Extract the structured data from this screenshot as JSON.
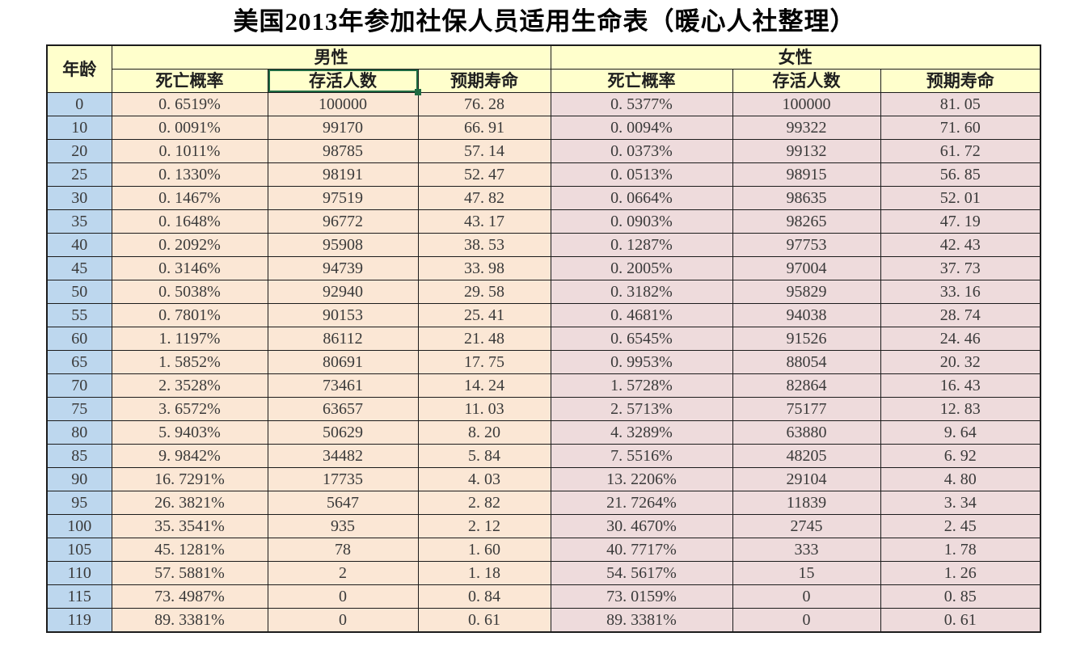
{
  "title": "美国2013年参加社保人员适用生命表（暖心人社整理）",
  "colors": {
    "header_bg": "#ffffcc",
    "age_bg": "#bdd7ee",
    "male_bg": "#fbe7d5",
    "female_bg": "#eedbdc",
    "border": "#1c1c1c",
    "selection": "#1f6b43"
  },
  "table": {
    "age_header": "年龄",
    "groups": [
      {
        "label": "男性"
      },
      {
        "label": "女性"
      }
    ],
    "sub_headers": [
      "死亡概率",
      "存活人数",
      "预期寿命"
    ],
    "columns_semantic": [
      "age",
      "male_death_probability",
      "male_survivors",
      "male_life_expectancy",
      "female_death_probability",
      "female_survivors",
      "female_life_expectancy"
    ],
    "selected_cell": "male_survivors_header",
    "rows": [
      {
        "age": "0",
        "male": [
          "0.6519%",
          "100000",
          "76.28"
        ],
        "female": [
          "0.5377%",
          "100000",
          "81.05"
        ]
      },
      {
        "age": "10",
        "male": [
          "0.0091%",
          "99170",
          "66.91"
        ],
        "female": [
          "0.0094%",
          "99322",
          "71.60"
        ]
      },
      {
        "age": "20",
        "male": [
          "0.1011%",
          "98785",
          "57.14"
        ],
        "female": [
          "0.0373%",
          "99132",
          "61.72"
        ]
      },
      {
        "age": "25",
        "male": [
          "0.1330%",
          "98191",
          "52.47"
        ],
        "female": [
          "0.0513%",
          "98915",
          "56.85"
        ]
      },
      {
        "age": "30",
        "male": [
          "0.1467%",
          "97519",
          "47.82"
        ],
        "female": [
          "0.0664%",
          "98635",
          "52.01"
        ]
      },
      {
        "age": "35",
        "male": [
          "0.1648%",
          "96772",
          "43.17"
        ],
        "female": [
          "0.0903%",
          "98265",
          "47.19"
        ]
      },
      {
        "age": "40",
        "male": [
          "0.2092%",
          "95908",
          "38.53"
        ],
        "female": [
          "0.1287%",
          "97753",
          "42.43"
        ]
      },
      {
        "age": "45",
        "male": [
          "0.3146%",
          "94739",
          "33.98"
        ],
        "female": [
          "0.2005%",
          "97004",
          "37.73"
        ]
      },
      {
        "age": "50",
        "male": [
          "0.5038%",
          "92940",
          "29.58"
        ],
        "female": [
          "0.3182%",
          "95829",
          "33.16"
        ]
      },
      {
        "age": "55",
        "male": [
          "0.7801%",
          "90153",
          "25.41"
        ],
        "female": [
          "0.4681%",
          "94038",
          "28.74"
        ]
      },
      {
        "age": "60",
        "male": [
          "1.1197%",
          "86112",
          "21.48"
        ],
        "female": [
          "0.6545%",
          "91526",
          "24.46"
        ]
      },
      {
        "age": "65",
        "male": [
          "1.5852%",
          "80691",
          "17.75"
        ],
        "female": [
          "0.9953%",
          "88054",
          "20.32"
        ]
      },
      {
        "age": "70",
        "male": [
          "2.3528%",
          "73461",
          "14.24"
        ],
        "female": [
          "1.5728%",
          "82864",
          "16.43"
        ]
      },
      {
        "age": "75",
        "male": [
          "3.6572%",
          "63657",
          "11.03"
        ],
        "female": [
          "2.5713%",
          "75177",
          "12.83"
        ]
      },
      {
        "age": "80",
        "male": [
          "5.9403%",
          "50629",
          "8.20"
        ],
        "female": [
          "4.3289%",
          "63880",
          "9.64"
        ]
      },
      {
        "age": "85",
        "male": [
          "9.9842%",
          "34482",
          "5.84"
        ],
        "female": [
          "7.5516%",
          "48205",
          "6.92"
        ]
      },
      {
        "age": "90",
        "male": [
          "16.7291%",
          "17735",
          "4.03"
        ],
        "female": [
          "13.2206%",
          "29104",
          "4.80"
        ]
      },
      {
        "age": "95",
        "male": [
          "26.3821%",
          "5647",
          "2.82"
        ],
        "female": [
          "21.7264%",
          "11839",
          "3.34"
        ]
      },
      {
        "age": "100",
        "male": [
          "35.3541%",
          "935",
          "2.12"
        ],
        "female": [
          "30.4670%",
          "2745",
          "2.45"
        ]
      },
      {
        "age": "105",
        "male": [
          "45.1281%",
          "78",
          "1.60"
        ],
        "female": [
          "40.7717%",
          "333",
          "1.78"
        ]
      },
      {
        "age": "110",
        "male": [
          "57.5881%",
          "2",
          "1.18"
        ],
        "female": [
          "54.5617%",
          "15",
          "1.26"
        ]
      },
      {
        "age": "115",
        "male": [
          "73.4987%",
          "0",
          "0.84"
        ],
        "female": [
          "73.0159%",
          "0",
          "0.85"
        ]
      },
      {
        "age": "119",
        "male": [
          "89.3381%",
          "0",
          "0.61"
        ],
        "female": [
          "89.3381%",
          "0",
          "0.61"
        ]
      }
    ]
  }
}
